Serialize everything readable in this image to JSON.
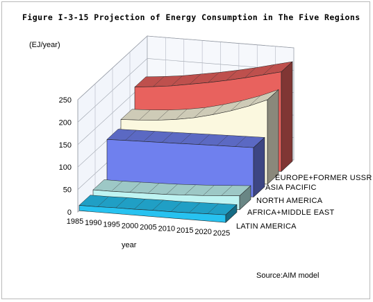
{
  "figure": {
    "title": "Figure I-3-15 Projection of Energy Consumption in The Five Regions",
    "unit": "(EJ/year)",
    "source": "Source:AIM model"
  },
  "chart_data": {
    "type": "area",
    "title": "Figure I-3-15 Projection of Energy Consumption in The Five Regions",
    "xlabel": "year",
    "ylabel": "(EJ/year)",
    "ylim": [
      0,
      250
    ],
    "yticks": [
      0,
      50,
      100,
      150,
      200,
      250
    ],
    "grid": true,
    "categories": [
      "1985",
      "1990",
      "1995",
      "2000",
      "2005",
      "2010",
      "2015",
      "2020",
      "2025"
    ],
    "series": [
      {
        "name": "EUROPE+FORMER USSR",
        "color": "#e8625e",
        "values": [
          162,
          166,
          171,
          178,
          185,
          193,
          202,
          212,
          222
        ]
      },
      {
        "name": "ASIA PACIFIC",
        "color": "#fbf8df",
        "values": [
          118,
          120,
          123,
          128,
          135,
          145,
          157,
          171,
          188
        ]
      },
      {
        "name": "NORTH AMERICA",
        "color": "#6f80ee",
        "values": [
          102,
          103,
          104,
          105,
          106,
          107,
          108,
          109,
          110
        ]
      },
      {
        "name": "AFRICA+MIDDLE EAST",
        "color": "#bff4f2",
        "values": [
          18,
          18,
          19,
          20,
          21,
          23,
          25,
          28,
          31
        ]
      },
      {
        "name": "LATIN AMERICA",
        "color": "#27c2f0",
        "values": [
          12,
          12,
          13,
          13,
          14,
          14,
          15,
          16,
          17
        ]
      }
    ]
  }
}
